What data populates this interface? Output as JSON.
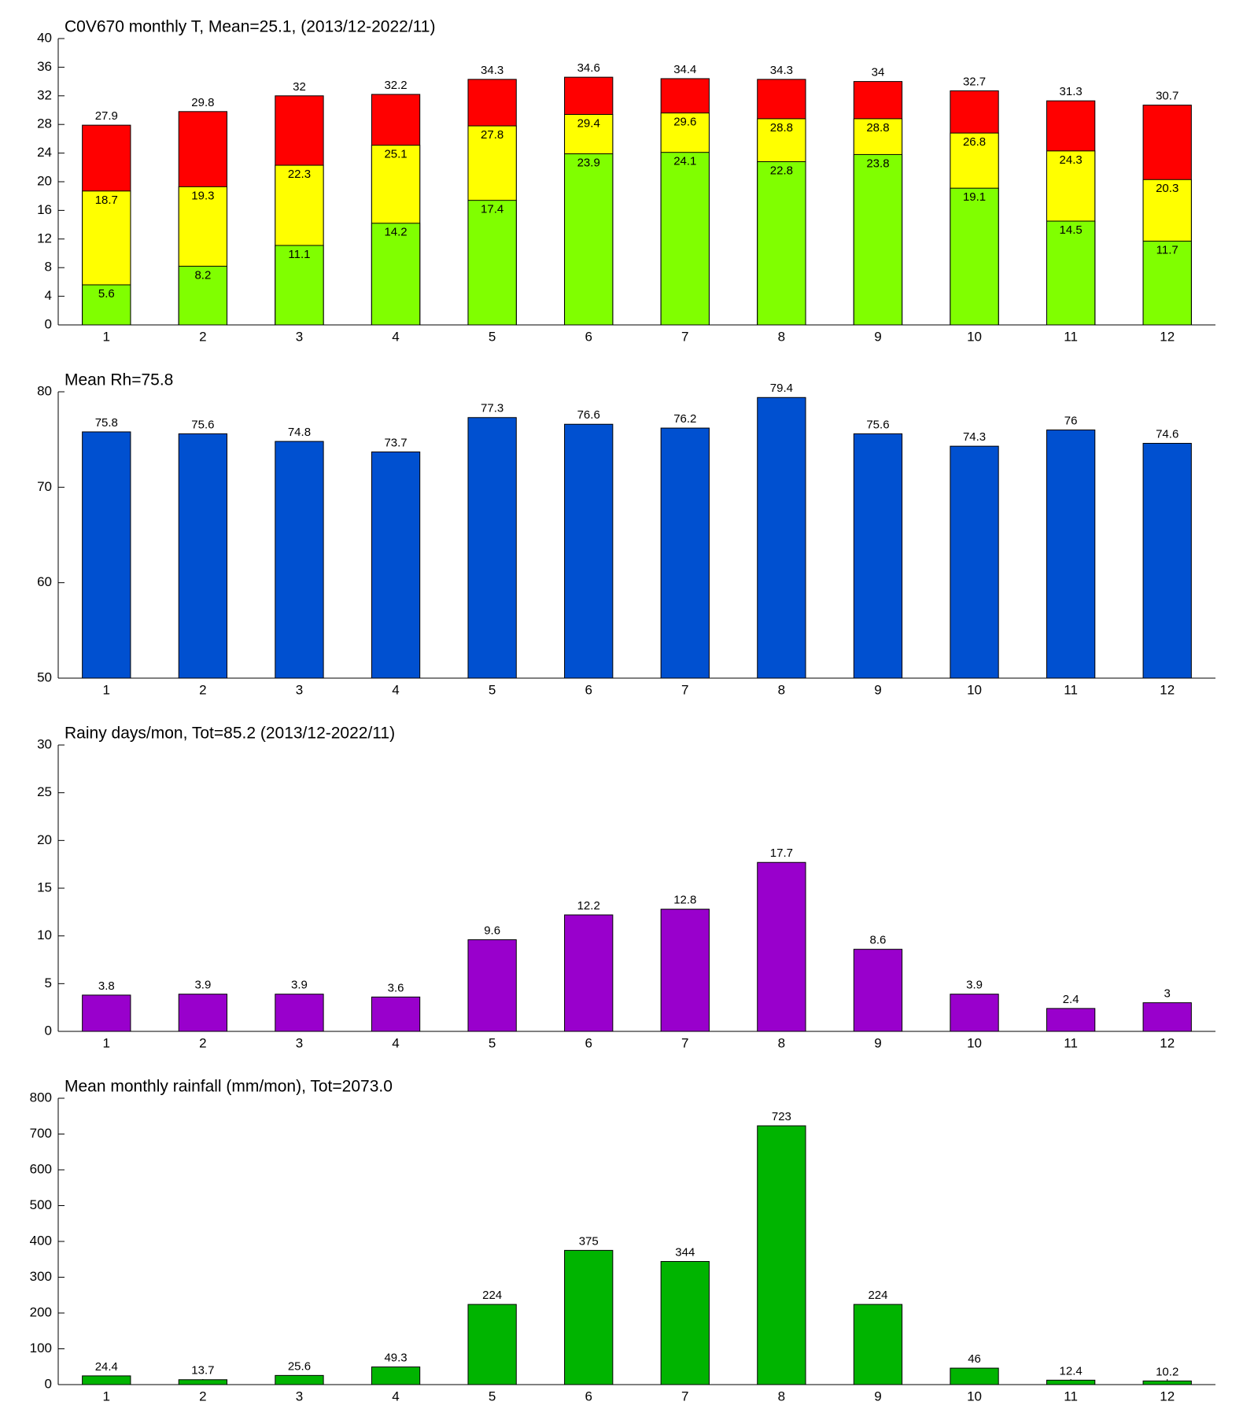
{
  "chart_data": [
    {
      "type": "bar",
      "barmode": "overlay",
      "title": "C0V670 monthly T, Mean=25.1, (2013/12-2022/11)",
      "categories": [
        1,
        2,
        3,
        4,
        5,
        6,
        7,
        8,
        9,
        10,
        11,
        12
      ],
      "series": [
        {
          "name": "max",
          "color": "#ff0000",
          "values": [
            27.9,
            29.8,
            32,
            32.2,
            34.3,
            34.6,
            34.4,
            34.3,
            34,
            32.7,
            31.3,
            30.7
          ]
        },
        {
          "name": "mean",
          "color": "#ffff00",
          "values": [
            18.7,
            19.3,
            22.3,
            25.1,
            27.8,
            29.4,
            29.6,
            28.8,
            28.8,
            26.8,
            24.3,
            20.3
          ]
        },
        {
          "name": "min",
          "color": "#80ff00",
          "values": [
            5.6,
            8.2,
            11.1,
            14.2,
            17.4,
            23.9,
            24.1,
            22.8,
            23.8,
            19.1,
            14.5,
            11.7
          ]
        }
      ],
      "ylim": [
        0,
        40
      ],
      "yticks": [
        0,
        4,
        8,
        12,
        16,
        20,
        24,
        28,
        32,
        36,
        40
      ]
    },
    {
      "type": "bar",
      "title": "Mean Rh=75.8",
      "categories": [
        1,
        2,
        3,
        4,
        5,
        6,
        7,
        8,
        9,
        10,
        11,
        12
      ],
      "values": [
        75.8,
        75.6,
        74.8,
        73.7,
        77.3,
        76.6,
        76.2,
        79.4,
        75.6,
        74.3,
        76,
        74.6
      ],
      "color": "#0050d0",
      "ylim": [
        50,
        80
      ],
      "yticks": [
        50,
        60,
        70,
        80
      ]
    },
    {
      "type": "bar",
      "title": "Rainy days/mon, Tot=85.2 (2013/12-2022/11)",
      "categories": [
        1,
        2,
        3,
        4,
        5,
        6,
        7,
        8,
        9,
        10,
        11,
        12
      ],
      "values": [
        3.8,
        3.9,
        3.9,
        3.6,
        9.6,
        12.2,
        12.8,
        17.7,
        8.6,
        3.9,
        2.4,
        3
      ],
      "color": "#9900cc",
      "ylim": [
        0,
        30
      ],
      "yticks": [
        0,
        5,
        10,
        15,
        20,
        25,
        30
      ]
    },
    {
      "type": "bar",
      "title": "Mean monthly rainfall (mm/mon), Tot=2073.0",
      "categories": [
        1,
        2,
        3,
        4,
        5,
        6,
        7,
        8,
        9,
        10,
        11,
        12
      ],
      "values": [
        24.4,
        13.7,
        25.6,
        49.3,
        224,
        375,
        344,
        723,
        224,
        46,
        12.4,
        10.2
      ],
      "color": "#00b400",
      "ylim": [
        0,
        800
      ],
      "yticks": [
        0,
        100,
        200,
        300,
        400,
        500,
        600,
        700,
        800
      ]
    }
  ]
}
